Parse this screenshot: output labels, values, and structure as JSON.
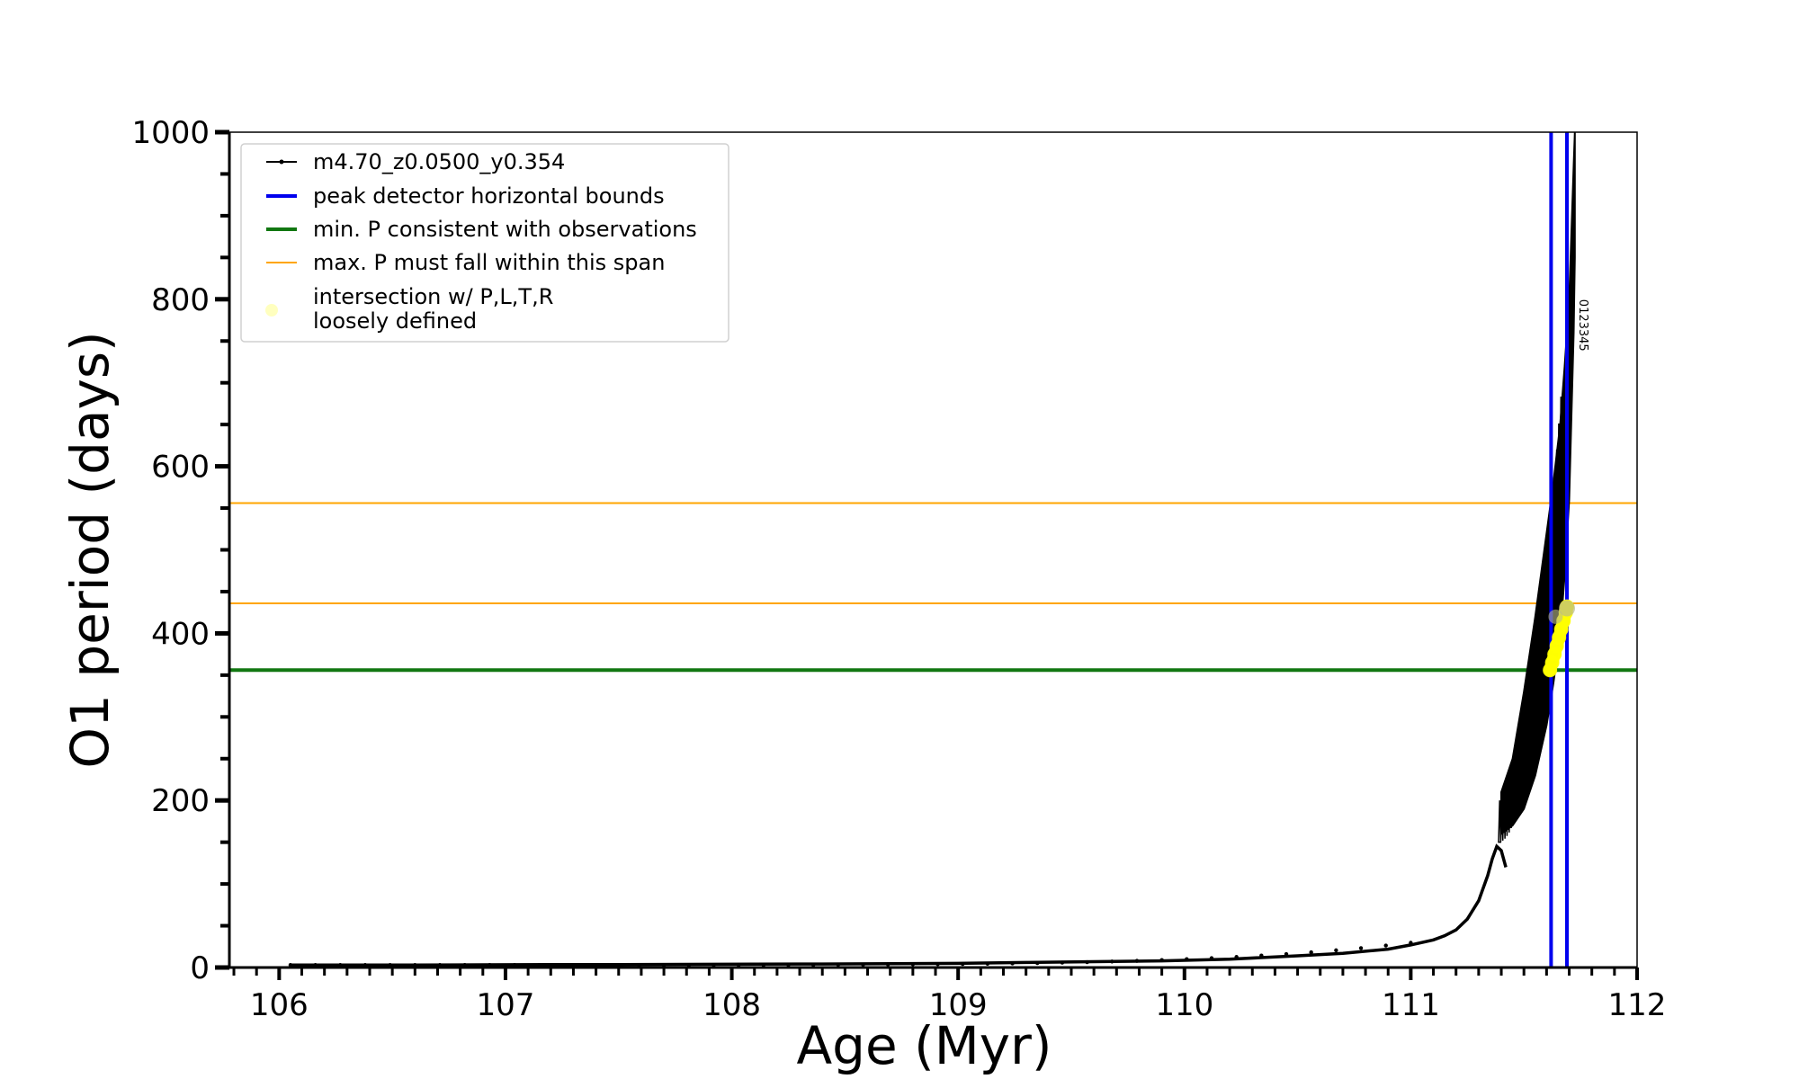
{
  "chart_data": {
    "type": "line",
    "title": "",
    "xlabel": "Age (Myr)",
    "ylabel": "O1 period (days)",
    "xlim": [
      105.78,
      112.0
    ],
    "ylim": [
      0,
      1000
    ],
    "xticks": [
      106,
      107,
      108,
      109,
      110,
      111,
      112
    ],
    "yticks": [
      0,
      200,
      400,
      600,
      800,
      1000
    ],
    "grid": false,
    "legend_position": "top-left",
    "series": [
      {
        "name": "m4.70_z0.0500_y0.354",
        "kind": "track",
        "color": "#000000",
        "x": [
          106.05,
          106.3,
          106.6,
          106.9,
          107.2,
          107.5,
          107.8,
          108.1,
          108.4,
          108.7,
          109.0,
          109.3,
          109.6,
          109.9,
          110.2,
          110.5,
          110.7,
          110.9,
          111.0,
          111.1,
          111.15,
          111.2,
          111.25,
          111.3,
          111.34,
          111.36,
          111.38,
          111.4,
          111.42
        ],
        "y": [
          3,
          3,
          3,
          3.2,
          3.4,
          3.6,
          3.8,
          4,
          4.2,
          4.5,
          5,
          6,
          7,
          8,
          10,
          14,
          17,
          22,
          27,
          33,
          38,
          45,
          58,
          80,
          110,
          130,
          145,
          140,
          120
        ]
      },
      {
        "name": "peak detector horizontal bounds",
        "kind": "vlines",
        "color": "#0000ee",
        "x": [
          111.62,
          111.69
        ]
      },
      {
        "name": "min. P consistent with observations",
        "kind": "hline",
        "color": "#117711",
        "y": 356
      },
      {
        "name": "max. P must fall within this span",
        "kind": "hlines",
        "color": "#ffa500",
        "y": [
          436,
          556
        ]
      },
      {
        "name": "intersection w/ P,L,T,R\nloosely defined",
        "kind": "points",
        "color": "#ffff00",
        "x": [
          111.615,
          111.625,
          111.635,
          111.645,
          111.655,
          111.665,
          111.675,
          111.685,
          111.69
        ],
        "y": [
          356,
          365,
          375,
          385,
          395,
          405,
          415,
          425,
          432
        ]
      }
    ],
    "annotations": [
      "0123345"
    ]
  },
  "colors": {
    "track": "#000000",
    "bounds": "#0000ee",
    "min_p": "#117711",
    "max_p": "#ffa500",
    "intersection": "#ffff00"
  }
}
